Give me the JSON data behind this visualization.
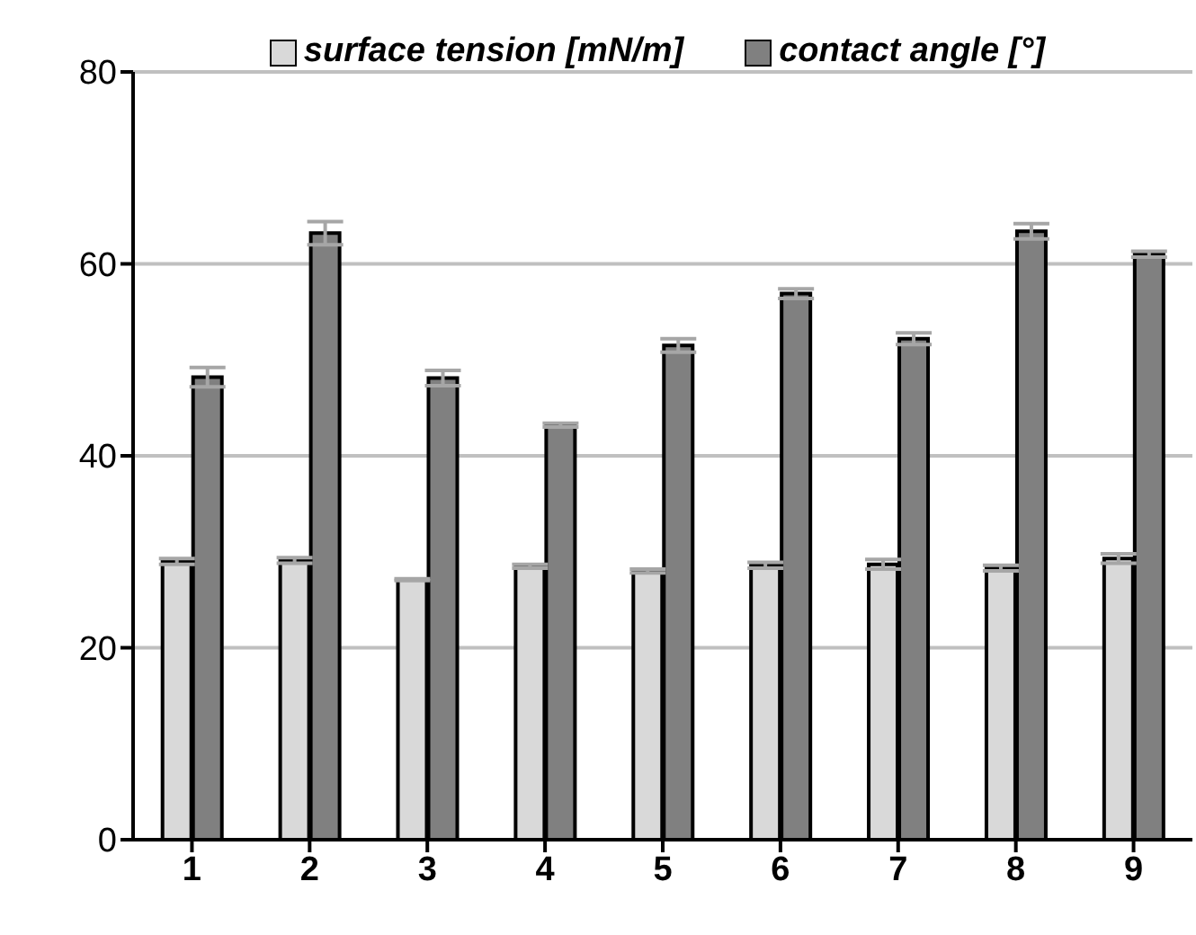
{
  "chart_data": {
    "type": "bar",
    "categories": [
      "1",
      "2",
      "3",
      "4",
      "5",
      "6",
      "7",
      "8",
      "9"
    ],
    "series": [
      {
        "name": "surface tension [mN/m]",
        "color": "#d9d9d9",
        "values": [
          29,
          29.1,
          27.1,
          28.5,
          28,
          28.6,
          28.7,
          28.3,
          29.3
        ],
        "errors": [
          0.3,
          0.3,
          0.1,
          0.2,
          0.2,
          0.3,
          0.5,
          0.3,
          0.5
        ]
      },
      {
        "name": "contact angle [°]",
        "color": "#808080",
        "values": [
          48.2,
          63.2,
          48.1,
          43.2,
          51.5,
          56.9,
          52.2,
          63.4,
          61
        ],
        "errors": [
          1,
          1.2,
          0.8,
          0.2,
          0.7,
          0.5,
          0.6,
          0.8,
          0.3
        ]
      }
    ],
    "ylim": [
      0,
      80
    ],
    "yticks": [
      0,
      20,
      40,
      60,
      80
    ],
    "grid": "y",
    "legend": "top"
  }
}
